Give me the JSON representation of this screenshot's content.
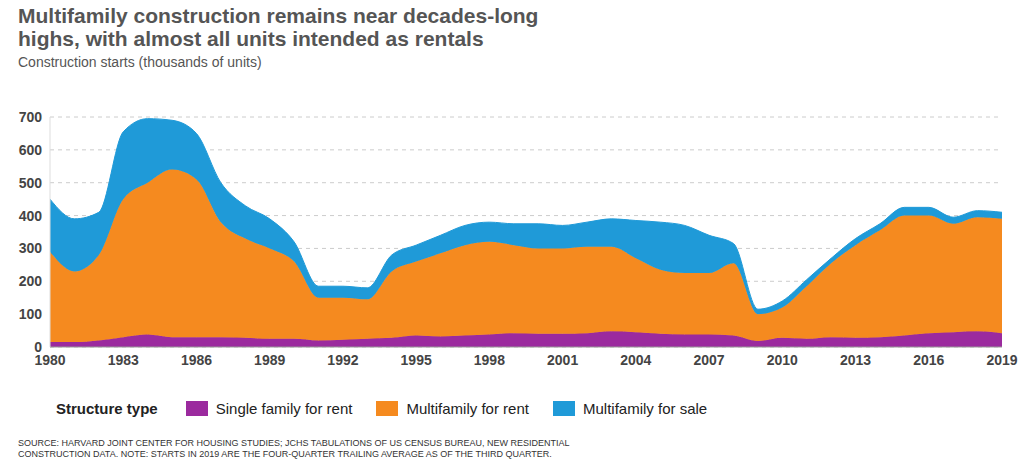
{
  "chart_data": {
    "type": "area",
    "stacked": true,
    "grid": true,
    "title": "Multifamily construction remains near decades-long highs, with almost all units intended as rentals",
    "subtitle": "Construction starts (thousands of units)",
    "legend_title": "Structure type",
    "source": "SOURCE: HARVARD JOINT CENTER FOR HOUSING STUDIES; JCHS TABULATIONS OF US CENSUS BUREAU, NEW RESIDENTIAL CONSTRUCTION DATA. NOTE: STARTS IN 2019 ARE THE FOUR-QUARTER TRAILING AVERAGE AS OF THE THIRD QUARTER.",
    "x": [
      1980,
      1981,
      1982,
      1983,
      1984,
      1985,
      1986,
      1987,
      1988,
      1989,
      1990,
      1991,
      1992,
      1993,
      1994,
      1995,
      1996,
      1997,
      1998,
      1999,
      2000,
      2001,
      2002,
      2003,
      2004,
      2005,
      2006,
      2007,
      2008,
      2009,
      2010,
      2011,
      2012,
      2013,
      2014,
      2015,
      2016,
      2017,
      2018,
      2019
    ],
    "xlim": [
      1980,
      2019
    ],
    "xticks": [
      1980,
      1983,
      1986,
      1989,
      1992,
      1995,
      1998,
      2001,
      2004,
      2007,
      2010,
      2013,
      2016,
      2019
    ],
    "ylim": [
      0,
      700
    ],
    "yticks": [
      0,
      100,
      200,
      300,
      400,
      500,
      600,
      700
    ],
    "series": [
      {
        "name": "Single family for rent",
        "color": "#9b2a9e",
        "values": [
          15,
          15,
          20,
          30,
          38,
          30,
          30,
          30,
          28,
          25,
          25,
          20,
          22,
          25,
          28,
          35,
          32,
          35,
          38,
          42,
          40,
          40,
          42,
          48,
          45,
          40,
          38,
          38,
          35,
          18,
          28,
          25,
          30,
          28,
          30,
          35,
          42,
          45,
          48,
          42
        ]
      },
      {
        "name": "Multifamily for rent",
        "color": "#f58a1f",
        "values": [
          275,
          215,
          260,
          420,
          462,
          510,
          480,
          350,
          302,
          275,
          235,
          130,
          128,
          120,
          202,
          225,
          253,
          275,
          282,
          268,
          260,
          260,
          263,
          257,
          225,
          195,
          187,
          187,
          220,
          82,
          92,
          160,
          225,
          282,
          325,
          365,
          358,
          330,
          347,
          348
        ]
      },
      {
        "name": "Multifamily for sale",
        "color": "#1f9ad8",
        "values": [
          160,
          160,
          130,
          205,
          195,
          150,
          140,
          120,
          100,
          90,
          60,
          35,
          35,
          35,
          50,
          50,
          55,
          60,
          60,
          65,
          75,
          70,
          75,
          85,
          115,
          145,
          145,
          115,
          60,
          15,
          20,
          20,
          15,
          20,
          20,
          25,
          25,
          20,
          20,
          20
        ]
      }
    ]
  }
}
